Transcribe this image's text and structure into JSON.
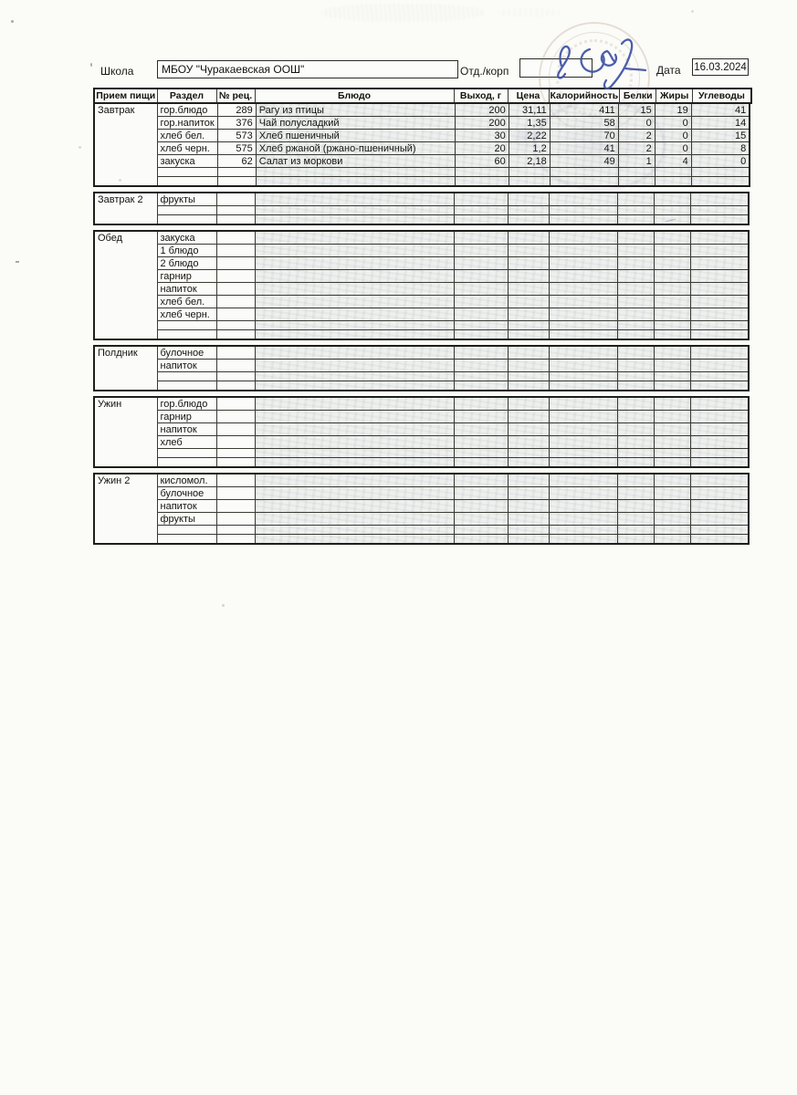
{
  "form": {
    "school_label": "Школа",
    "school_value": "МБОУ \"Чуракаевская ООШ\"",
    "dept_label": "Отд./корп",
    "dept_value": "",
    "date_label": "Дата",
    "date_value": "16.03.2024"
  },
  "table": {
    "columns": [
      "Прием пищи",
      "Раздел",
      "№ рец.",
      "Блюдо",
      "Выход, г",
      "Цена",
      "Калорийность",
      "Белки",
      "Жиры",
      "Углеводы"
    ],
    "column_keys": [
      "razdel",
      "rec",
      "dish",
      "out",
      "price",
      "kcal",
      "protein",
      "fat",
      "carbs"
    ],
    "sections": [
      {
        "meal": "Завтрак",
        "rows": [
          {
            "razdel": "гор.блюдо",
            "rec": "289",
            "dish": "Рагу из птицы",
            "out": "200",
            "price": "31,11",
            "kcal": "411",
            "protein": "15",
            "fat": "19",
            "carbs": "41"
          },
          {
            "razdel": "гор.напиток",
            "rec": "376",
            "dish": "Чай полусладкий",
            "out": "200",
            "price": "1,35",
            "kcal": "58",
            "protein": "0",
            "fat": "0",
            "carbs": "14"
          },
          {
            "razdel": "хлеб бел.",
            "rec": "573",
            "dish": "Хлеб пшеничный",
            "out": "30",
            "price": "2,22",
            "kcal": "70",
            "protein": "2",
            "fat": "0",
            "carbs": "15"
          },
          {
            "razdel": "хлеб черн.",
            "rec": "575",
            "dish": "Хлеб ржаной (ржано-пшеничный)",
            "out": "20",
            "price": "1,2",
            "kcal": "41",
            "protein": "2",
            "fat": "0",
            "carbs": "8"
          },
          {
            "razdel": "закуска",
            "rec": "62",
            "dish": "Салат из моркови",
            "out": "60",
            "price": "2,18",
            "kcal": "49",
            "protein": "1",
            "fat": "4",
            "carbs": "0"
          },
          {},
          {}
        ]
      },
      {
        "meal": "Завтрак 2",
        "rows": [
          {
            "razdel": "фрукты"
          },
          {},
          {}
        ]
      },
      {
        "meal": "Обед",
        "rows": [
          {
            "razdel": "закуска"
          },
          {
            "razdel": "1 блюдо"
          },
          {
            "razdel": "2 блюдо"
          },
          {
            "razdel": "гарнир"
          },
          {
            "razdel": "напиток"
          },
          {
            "razdel": "хлеб бел."
          },
          {
            "razdel": "хлеб черн."
          },
          {},
          {}
        ]
      },
      {
        "meal": "Полдник",
        "rows": [
          {
            "razdel": "булочное"
          },
          {
            "razdel": "напиток"
          },
          {},
          {}
        ]
      },
      {
        "meal": "Ужин",
        "rows": [
          {
            "razdel": "гор.блюдо"
          },
          {
            "razdel": "гарнир"
          },
          {
            "razdel": "напиток"
          },
          {
            "razdel": "хлеб"
          },
          {},
          {}
        ]
      },
      {
        "meal": "Ужин 2",
        "rows": [
          {
            "razdel": "кисломол."
          },
          {
            "razdel": "булочное"
          },
          {
            "razdel": "напиток"
          },
          {
            "razdel": "фрукты"
          },
          {},
          {}
        ]
      }
    ]
  },
  "artifacts": {
    "stamp": "round-ink-seal",
    "signature": "handwritten-signature-blue-ink"
  },
  "colors": {
    "paper": "#fbfbf8",
    "table_line": "#2a2a26",
    "cell_tint": "#eef0ee",
    "signature_ink": "#3f51a5",
    "stamp_ink": "#98826a"
  }
}
